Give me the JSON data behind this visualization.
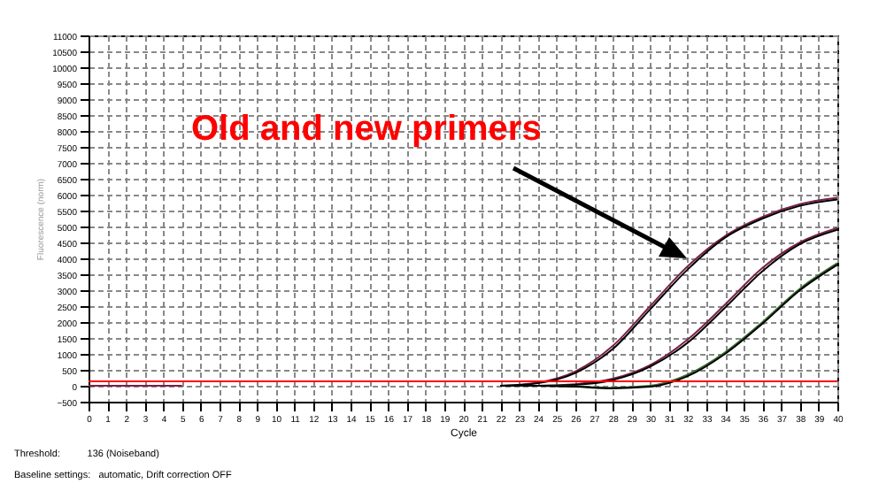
{
  "chart_data": {
    "type": "line",
    "xlabel": "Cycle",
    "ylabel": "Fluorescence (norm)",
    "x": [
      22,
      24,
      26,
      28,
      30,
      32,
      34,
      36,
      38,
      40
    ],
    "series": [
      {
        "color": "#7a2048",
        "x": [
          0,
          5
        ],
        "values": [
          0,
          0
        ]
      },
      {
        "color": "#7a2048",
        "values": [
          0,
          100,
          450,
          1250,
          2500,
          3750,
          4700,
          5300,
          5700,
          5900
        ]
      },
      {
        "color": "#000000",
        "values": [
          0,
          80,
          400,
          1150,
          2400,
          3650,
          4650,
          5250,
          5650,
          5850
        ]
      },
      {
        "color": "#7a2048",
        "values": [
          0,
          0,
          50,
          220,
          650,
          1450,
          2550,
          3700,
          4500,
          4950
        ]
      },
      {
        "color": "#000000",
        "values": [
          0,
          0,
          30,
          180,
          600,
          1350,
          2450,
          3600,
          4450,
          4900
        ]
      },
      {
        "color": "#3c6e32",
        "values": [
          0,
          0,
          -20,
          -60,
          0,
          350,
          1050,
          2000,
          3050,
          3850
        ]
      },
      {
        "color": "#000000",
        "values": [
          0,
          0,
          -30,
          -80,
          -30,
          300,
          1000,
          1950,
          3000,
          3800
        ]
      }
    ],
    "xlim": [
      0,
      40
    ],
    "xticks": [
      0,
      1,
      2,
      3,
      4,
      5,
      6,
      7,
      8,
      9,
      10,
      11,
      12,
      13,
      14,
      15,
      16,
      17,
      18,
      19,
      20,
      21,
      22,
      23,
      24,
      25,
      26,
      27,
      28,
      29,
      30,
      31,
      32,
      33,
      34,
      35,
      36,
      37,
      38,
      39,
      40
    ],
    "ylim": [
      -500,
      11000
    ],
    "yticks": [
      -500,
      0,
      500,
      1000,
      1500,
      2000,
      2500,
      3000,
      3500,
      4000,
      4500,
      5000,
      5500,
      6000,
      6500,
      7000,
      7500,
      8000,
      8500,
      9000,
      9500,
      10000,
      10500,
      11000
    ],
    "grid": true,
    "line_style": "solid",
    "marker": "none",
    "ref_lines": [
      {
        "axis": "y",
        "value": 136,
        "color": "#ff0000"
      }
    ],
    "annotations": [
      "Old and new primers",
      "Threshold:          136 (Noiseband)",
      "Baseline settings:   automatic, Drift correction OFF"
    ]
  }
}
